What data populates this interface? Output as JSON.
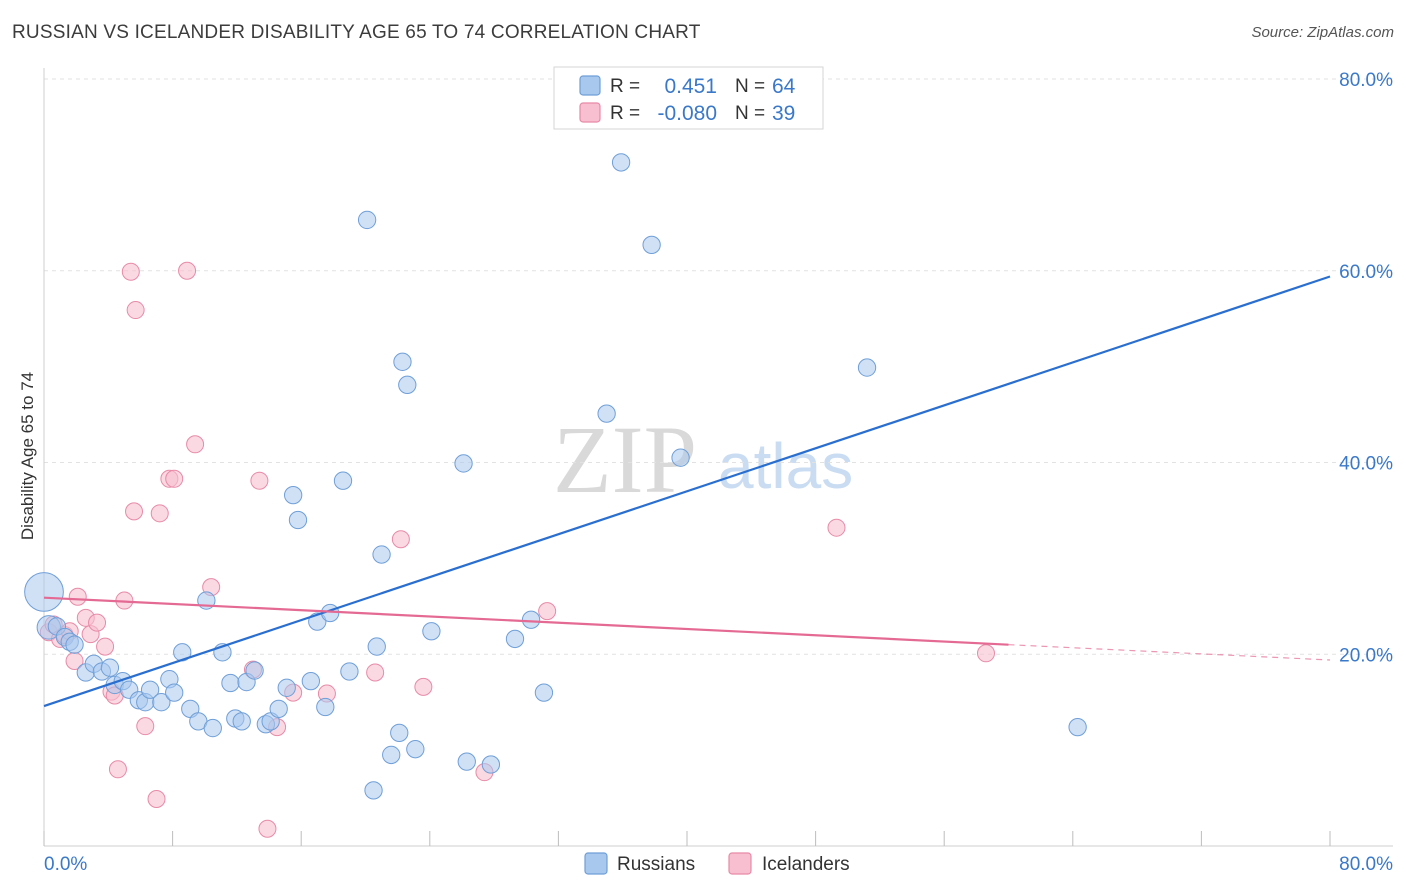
{
  "title": "RUSSIAN VS ICELANDER DISABILITY AGE 65 TO 74 CORRELATION CHART",
  "source": "Source: ZipAtlas.com",
  "watermark": {
    "zip": "ZIP",
    "atlas": "atlas"
  },
  "stats": [
    {
      "r_label": "R =",
      "r_value": "0.451",
      "n_label": "N =",
      "n_value": "64"
    },
    {
      "r_label": "R =",
      "r_value": "-0.080",
      "n_label": "N =",
      "n_value": "39"
    }
  ],
  "colors": {
    "russians_fill": "#a9c8ee",
    "russians_stroke": "#6f9fd8",
    "russians_line": "#2a6fcf",
    "icelanders_fill": "#f7bfd0",
    "icelanders_stroke": "#e88aa8",
    "icelanders_line": "#e46a93",
    "grid": "#e2e2e2",
    "tick_text": "#3a78c9"
  },
  "chart_data": {
    "type": "scatter",
    "title": "RUSSIAN VS ICELANDER DISABILITY AGE 65 TO 74 CORRELATION CHART",
    "xlabel": "",
    "ylabel": "Disability Age 65 to 74",
    "xlim": [
      0,
      80
    ],
    "ylim": [
      0,
      80
    ],
    "x_tick_labels": [
      "0.0%",
      "80.0%"
    ],
    "y_tick_labels": [
      "20.0%",
      "40.0%",
      "60.0%",
      "80.0%"
    ],
    "y_ticks": [
      20,
      40,
      60,
      80
    ],
    "legend": [
      "Russians",
      "Icelanders"
    ],
    "series": [
      {
        "name": "Russians",
        "trend": {
          "x": [
            0,
            80
          ],
          "y": [
            14.6,
            59.4
          ]
        },
        "points": [
          [
            0.0,
            26.5
          ],
          [
            0.3,
            22.8
          ],
          [
            0.8,
            22.9
          ],
          [
            1.3,
            21.8
          ],
          [
            1.6,
            21.3
          ],
          [
            1.9,
            21.0
          ],
          [
            2.6,
            18.1
          ],
          [
            3.1,
            19.0
          ],
          [
            3.6,
            18.2
          ],
          [
            4.1,
            18.6
          ],
          [
            4.4,
            16.8
          ],
          [
            4.9,
            17.2
          ],
          [
            5.3,
            16.3
          ],
          [
            5.9,
            15.2
          ],
          [
            6.3,
            15.0
          ],
          [
            6.6,
            16.3
          ],
          [
            7.3,
            15.0
          ],
          [
            7.8,
            17.4
          ],
          [
            8.1,
            16.0
          ],
          [
            8.6,
            20.2
          ],
          [
            9.1,
            14.3
          ],
          [
            9.6,
            13.0
          ],
          [
            10.1,
            25.6
          ],
          [
            10.5,
            12.3
          ],
          [
            11.1,
            20.2
          ],
          [
            11.6,
            17.0
          ],
          [
            11.9,
            13.3
          ],
          [
            12.3,
            13.0
          ],
          [
            12.6,
            17.1
          ],
          [
            13.1,
            18.3
          ],
          [
            13.8,
            12.7
          ],
          [
            14.1,
            13.0
          ],
          [
            14.6,
            14.3
          ],
          [
            15.1,
            16.5
          ],
          [
            15.5,
            36.6
          ],
          [
            15.8,
            34.0
          ],
          [
            16.6,
            17.2
          ],
          [
            17.0,
            23.4
          ],
          [
            17.5,
            14.5
          ],
          [
            17.8,
            24.3
          ],
          [
            18.6,
            38.1
          ],
          [
            19.0,
            18.2
          ],
          [
            20.1,
            65.3
          ],
          [
            20.5,
            5.8
          ],
          [
            20.7,
            20.8
          ],
          [
            21.0,
            30.4
          ],
          [
            21.6,
            9.5
          ],
          [
            22.1,
            11.8
          ],
          [
            22.3,
            50.5
          ],
          [
            22.6,
            48.1
          ],
          [
            23.1,
            10.1
          ],
          [
            24.1,
            22.4
          ],
          [
            26.1,
            39.9
          ],
          [
            26.3,
            8.8
          ],
          [
            27.8,
            8.5
          ],
          [
            29.3,
            21.6
          ],
          [
            30.3,
            23.6
          ],
          [
            31.1,
            16.0
          ],
          [
            35.0,
            45.1
          ],
          [
            35.9,
            71.3
          ],
          [
            37.8,
            62.7
          ],
          [
            39.6,
            40.5
          ],
          [
            51.2,
            49.9
          ],
          [
            64.3,
            12.4
          ]
        ],
        "sizes": [
          900,
          330,
          180,
          180,
          180,
          180,
          180,
          180,
          180,
          180,
          180,
          180,
          180,
          180,
          180,
          180,
          180,
          180,
          180,
          180,
          180,
          180,
          180,
          180,
          180,
          180,
          180,
          180,
          180,
          180,
          180,
          180,
          180,
          180,
          180,
          180,
          180,
          180,
          180,
          180,
          180,
          180,
          180,
          180,
          180,
          180,
          180,
          180,
          180,
          180,
          180,
          180,
          180,
          180,
          180,
          180,
          180,
          180,
          180,
          180,
          180,
          180,
          180,
          180
        ]
      },
      {
        "name": "Icelanders",
        "trend": {
          "x": [
            0,
            60
          ],
          "y": [
            25.9,
            21.0
          ],
          "dashed_to": {
            "x": 80,
            "y": 19.4
          }
        },
        "points": [
          [
            0.3,
            22.3
          ],
          [
            0.6,
            23.1
          ],
          [
            1.0,
            21.6
          ],
          [
            1.3,
            22.0
          ],
          [
            1.6,
            22.4
          ],
          [
            1.9,
            19.3
          ],
          [
            2.1,
            26.0
          ],
          [
            2.6,
            23.8
          ],
          [
            2.9,
            22.1
          ],
          [
            3.3,
            23.3
          ],
          [
            3.8,
            20.8
          ],
          [
            4.2,
            16.1
          ],
          [
            4.4,
            15.7
          ],
          [
            4.6,
            8.0
          ],
          [
            5.0,
            25.6
          ],
          [
            5.4,
            59.9
          ],
          [
            5.7,
            55.9
          ],
          [
            5.6,
            34.9
          ],
          [
            6.3,
            12.5
          ],
          [
            7.0,
            4.9
          ],
          [
            7.2,
            34.7
          ],
          [
            7.8,
            38.3
          ],
          [
            8.1,
            38.3
          ],
          [
            8.9,
            60.0
          ],
          [
            9.4,
            41.9
          ],
          [
            10.4,
            27.0
          ],
          [
            13.0,
            18.4
          ],
          [
            13.4,
            38.1
          ],
          [
            13.9,
            1.8
          ],
          [
            14.5,
            12.4
          ],
          [
            15.5,
            16.0
          ],
          [
            17.6,
            15.9
          ],
          [
            20.6,
            18.1
          ],
          [
            22.2,
            32.0
          ],
          [
            23.6,
            16.6
          ],
          [
            27.4,
            7.7
          ],
          [
            31.3,
            24.5
          ],
          [
            49.3,
            33.2
          ],
          [
            58.6,
            20.1
          ]
        ]
      }
    ]
  }
}
